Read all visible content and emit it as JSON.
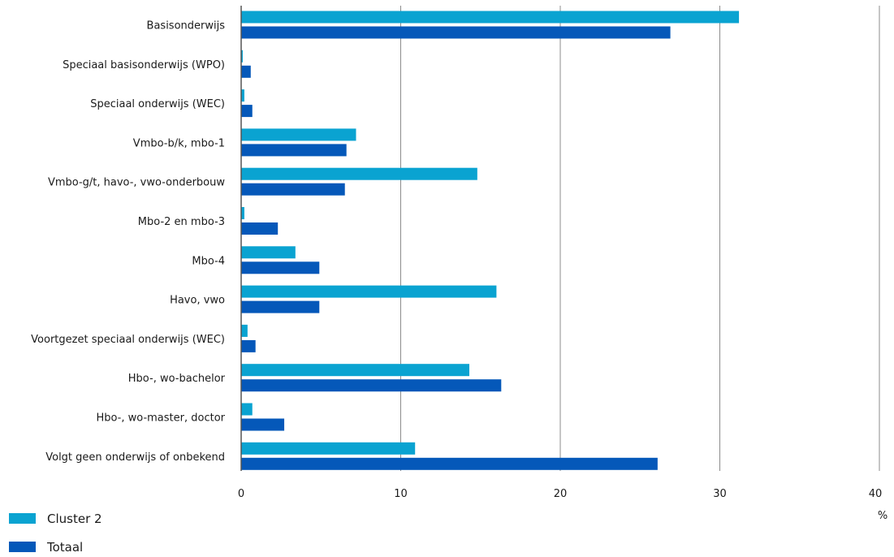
{
  "chart_data": {
    "type": "bar",
    "orientation": "horizontal",
    "categories": [
      "Basisonderwijs",
      "Speciaal basisonderwijs (WPO)",
      "Speciaal onderwijs (WEC)",
      "Vmbo-b/k, mbo-1",
      "Vmbo-g/t, havo-, vwo-onderbouw",
      "Mbo-2 en mbo-3",
      "Mbo-4",
      "Havo, vwo",
      "Voortgezet speciaal onderwijs (WEC)",
      "Hbo-, wo-bachelor",
      "Hbo-, wo-master, doctor",
      "Volgt geen onderwijs of onbekend"
    ],
    "series": [
      {
        "name": "Cluster 2",
        "color": "#0aa3d1",
        "values": [
          31.2,
          0.1,
          0.2,
          7.2,
          14.8,
          0.2,
          3.4,
          16.0,
          0.4,
          14.3,
          0.7,
          10.9
        ]
      },
      {
        "name": "Totaal",
        "color": "#0558b9",
        "values": [
          26.9,
          0.6,
          0.7,
          6.6,
          6.5,
          2.3,
          4.9,
          4.9,
          0.9,
          16.3,
          2.7,
          26.1
        ]
      }
    ],
    "xlim": [
      0,
      40
    ],
    "xticks": [
      0,
      10,
      20,
      30,
      40
    ],
    "unit": "%",
    "grid": true,
    "legend_position": "bottom-left",
    "title": "",
    "xlabel": "",
    "ylabel": ""
  }
}
